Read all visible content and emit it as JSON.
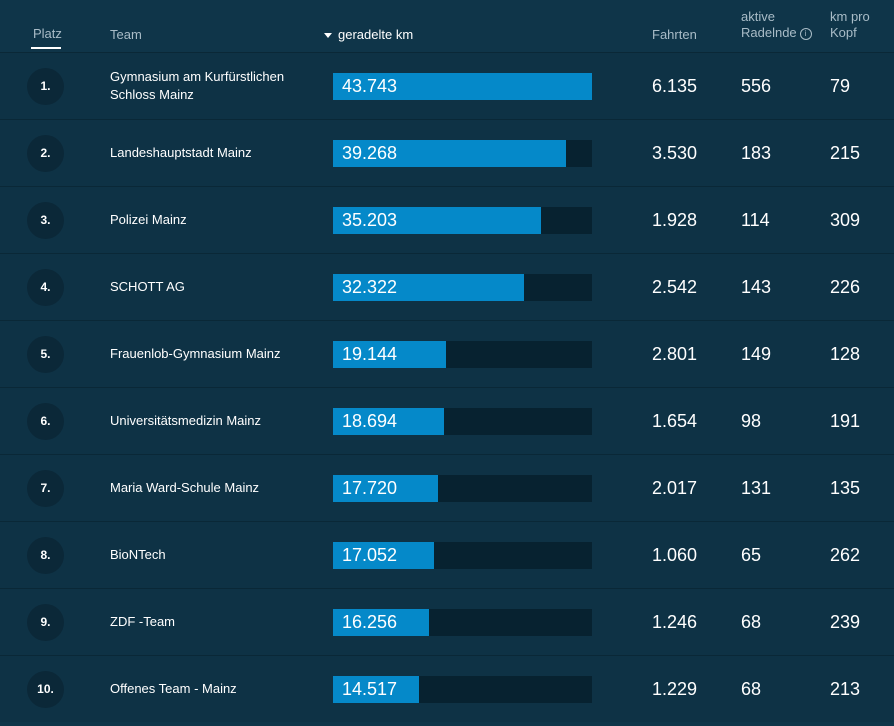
{
  "header": {
    "platz": "Platz",
    "team": "Team",
    "km": "geradelte km",
    "fahrten": "Fahrten",
    "radelnde_line1": "aktive",
    "radelnde_line2": "Radelnde",
    "kmpro_line1": "km pro",
    "kmpro_line2": "Kopf",
    "info_icon": "info-icon"
  },
  "colors": {
    "background": "#0f3549",
    "bar": "#0589c9",
    "track": "#072230"
  },
  "max_km": 43743,
  "rows": [
    {
      "rank": "1.",
      "team": "Gymnasium am Kurfürstlichen Schloss Mainz",
      "km": "43.743",
      "km_value": 43743,
      "fahrten": "6.135",
      "radelnde": "556",
      "km_pro_kopf": "79"
    },
    {
      "rank": "2.",
      "team": "Landeshauptstadt Mainz",
      "km": "39.268",
      "km_value": 39268,
      "fahrten": "3.530",
      "radelnde": "183",
      "km_pro_kopf": "215"
    },
    {
      "rank": "3.",
      "team": "Polizei Mainz",
      "km": "35.203",
      "km_value": 35203,
      "fahrten": "1.928",
      "radelnde": "114",
      "km_pro_kopf": "309"
    },
    {
      "rank": "4.",
      "team": "SCHOTT AG",
      "km": "32.322",
      "km_value": 32322,
      "fahrten": "2.542",
      "radelnde": "143",
      "km_pro_kopf": "226"
    },
    {
      "rank": "5.",
      "team": "Frauenlob-Gymnasium Mainz",
      "km": "19.144",
      "km_value": 19144,
      "fahrten": "2.801",
      "radelnde": "149",
      "km_pro_kopf": "128"
    },
    {
      "rank": "6.",
      "team": "Universitätsmedizin Mainz",
      "km": "18.694",
      "km_value": 18694,
      "fahrten": "1.654",
      "radelnde": "98",
      "km_pro_kopf": "191"
    },
    {
      "rank": "7.",
      "team": "Maria Ward-Schule Mainz",
      "km": "17.720",
      "km_value": 17720,
      "fahrten": "2.017",
      "radelnde": "131",
      "km_pro_kopf": "135"
    },
    {
      "rank": "8.",
      "team": "BioNTech",
      "km": "17.052",
      "km_value": 17052,
      "fahrten": "1.060",
      "radelnde": "65",
      "km_pro_kopf": "262"
    },
    {
      "rank": "9.",
      "team": "ZDF -Team",
      "km": "16.256",
      "km_value": 16256,
      "fahrten": "1.246",
      "radelnde": "68",
      "km_pro_kopf": "239"
    },
    {
      "rank": "10.",
      "team": "Offenes Team - Mainz",
      "km": "14.517",
      "km_value": 14517,
      "fahrten": "1.229",
      "radelnde": "68",
      "km_pro_kopf": "213"
    }
  ]
}
